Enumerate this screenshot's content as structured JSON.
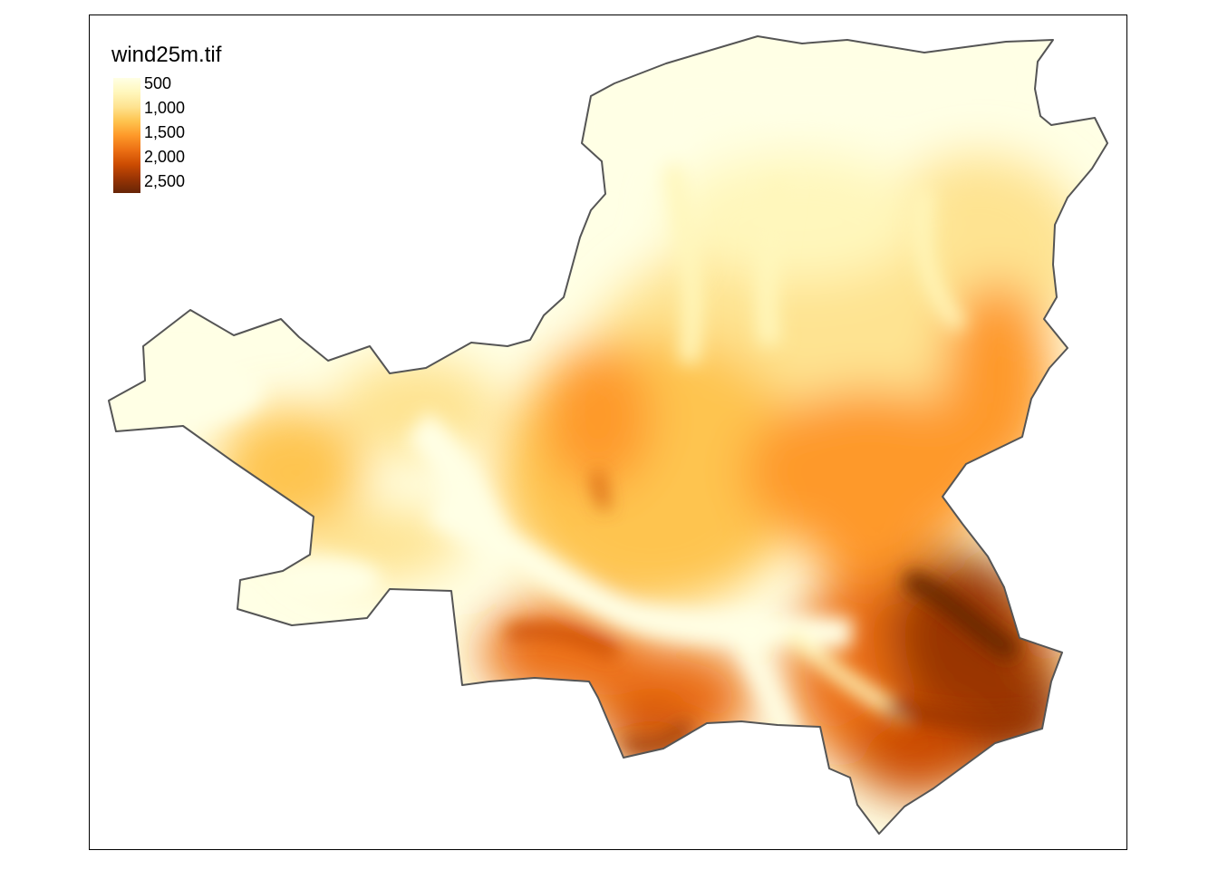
{
  "legend": {
    "title": "wind25m.tif",
    "labels": [
      "500",
      "1,000",
      "1,500",
      "2,000",
      "2,500"
    ]
  },
  "colors": {
    "ramp": [
      "#ffffe5",
      "#fff7bc",
      "#fee391",
      "#fec44f",
      "#fe9929",
      "#ec7014",
      "#cc4c02",
      "#993404",
      "#662506"
    ],
    "boundary": "#555555",
    "frame": "#000000"
  }
}
